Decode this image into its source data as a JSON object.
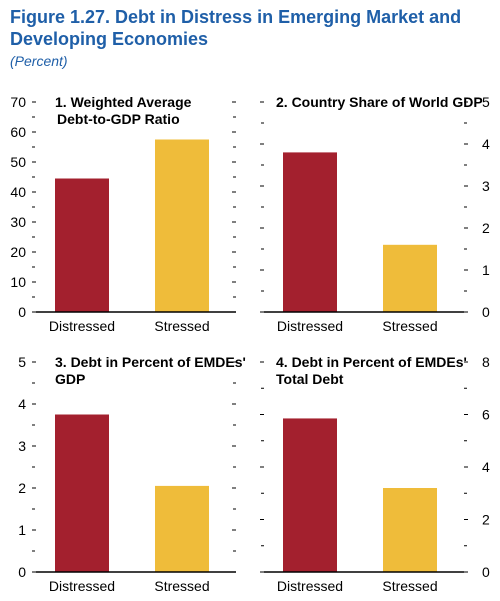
{
  "figure": {
    "title": "Figure 1.27.  Debt in Distress in Emerging Market and Developing Economies",
    "subtitle": "(Percent)"
  },
  "colors": {
    "distressed": "#a3202e",
    "stressed": "#efbc3a",
    "title": "#1f5fa8"
  },
  "chart_data": [
    {
      "type": "bar",
      "title": "1. Weighted Average Debt-to-GDP Ratio",
      "title_lines": [
        "1. Weighted Average",
        "Debt-to-GDP Ratio"
      ],
      "categories": [
        "Distressed",
        "Stressed"
      ],
      "values": [
        44.5,
        57.5
      ],
      "ylim": [
        0,
        70
      ],
      "yticks": [
        "0",
        "10",
        "20",
        "30",
        "40",
        "50",
        "60",
        "70"
      ],
      "y_axis_side": "left",
      "grid": false
    },
    {
      "type": "bar",
      "title": "2. Country Share of World GDP",
      "title_lines": [
        "2. Country Share of World GDP"
      ],
      "categories": [
        "Distressed",
        "Stressed"
      ],
      "values": [
        3.8,
        1.6
      ],
      "ylim": [
        0,
        5
      ],
      "yticks": [
        "0",
        "1",
        "2",
        "3",
        "4",
        "5"
      ],
      "y_axis_side": "right",
      "grid": false
    },
    {
      "type": "bar",
      "title": "3. Debt in Percent of EMDEs' GDP",
      "title_lines": [
        "3. Debt in Percent of EMDEs'",
        "GDP"
      ],
      "categories": [
        "Distressed",
        "Stressed"
      ],
      "values": [
        3.75,
        2.05
      ],
      "ylim": [
        0,
        5
      ],
      "yticks": [
        "0",
        "1",
        "2",
        "3",
        "4",
        "5"
      ],
      "y_axis_side": "left",
      "grid": false
    },
    {
      "type": "bar",
      "title": "4. Debt in Percent of EMDEs' Total Debt",
      "title_lines": [
        "4. Debt in Percent of EMDEs'",
        "Total Debt"
      ],
      "categories": [
        "Distressed",
        "Stressed"
      ],
      "values": [
        5.85,
        3.2
      ],
      "ylim": [
        0,
        8
      ],
      "yticks": [
        "0",
        "2",
        "4",
        "6",
        "8"
      ],
      "y_axis_side": "right",
      "grid": false
    }
  ]
}
